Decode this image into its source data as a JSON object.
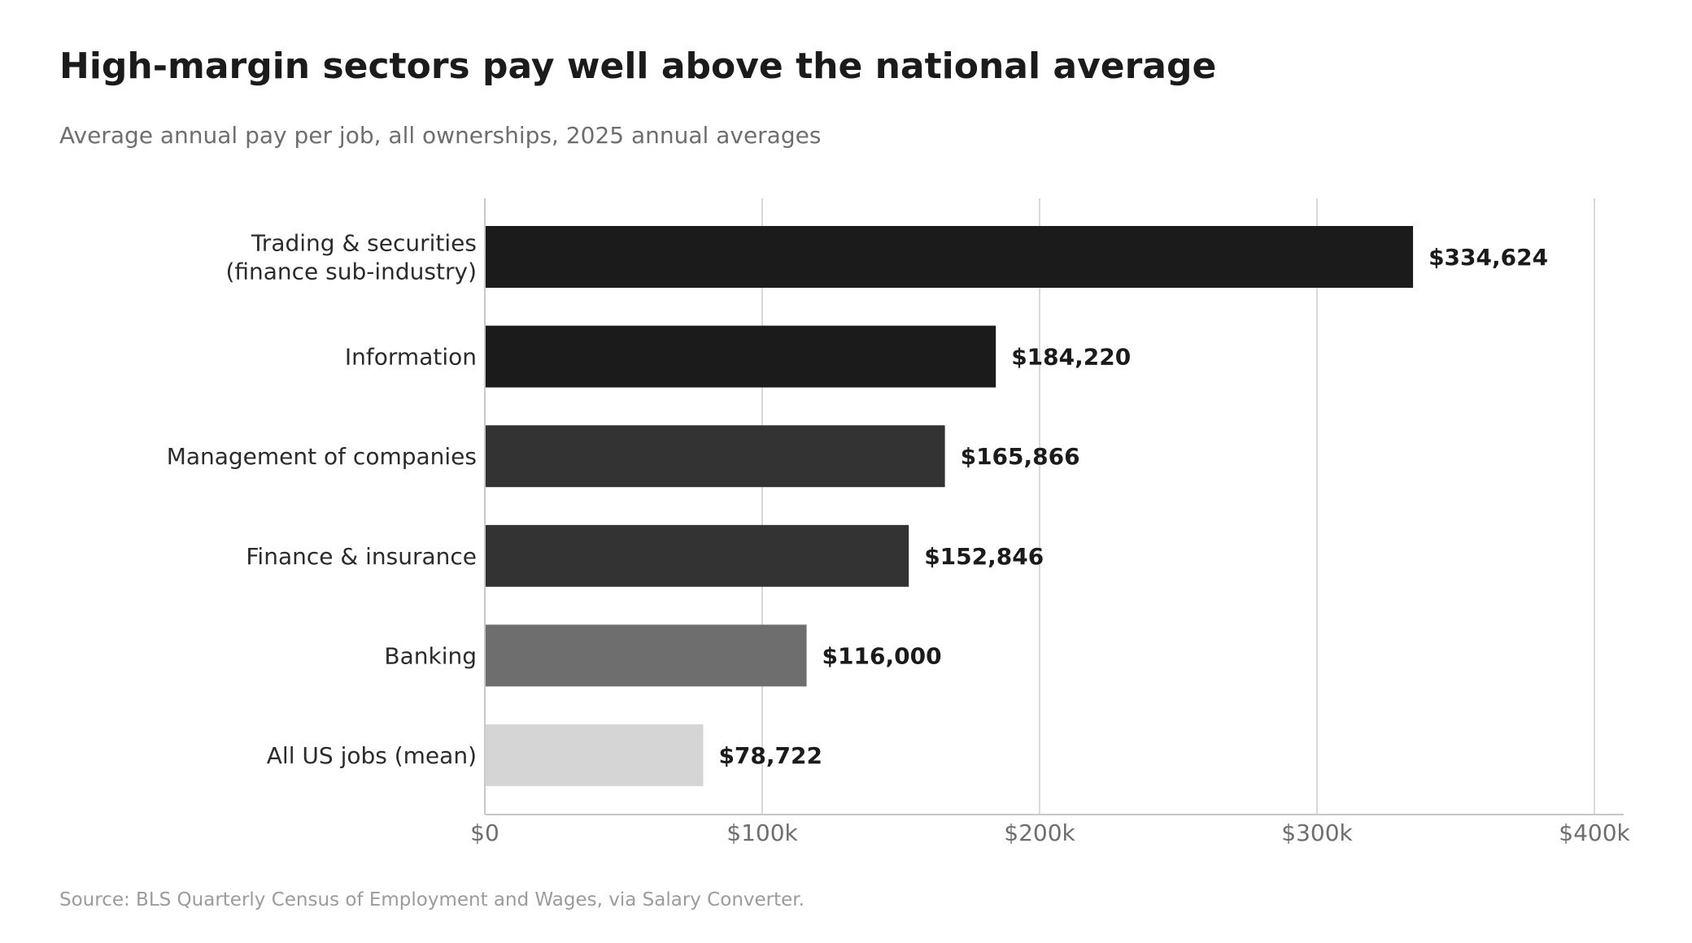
{
  "title": "High-margin sectors pay well above the national average",
  "subtitle": "Average annual pay per job, all ownerships, 2025 annual averages",
  "source": "Source: BLS Quarterly Census of Employment and Wages, via Salary Converter.",
  "colors": {
    "text_dark": "#1b1b1b",
    "text_label": "#2b2b2b",
    "text_muted": "#6e6e6e",
    "grid": "#d9d9d9",
    "axis": "#c8c8c8"
  },
  "chart_data": {
    "type": "bar",
    "orientation": "horizontal",
    "categories": [
      [
        "Trading & securities",
        "(finance sub-industry)"
      ],
      [
        "Information"
      ],
      [
        "Management of companies"
      ],
      [
        "Finance & insurance"
      ],
      [
        "Banking"
      ],
      [
        "All US jobs (mean)"
      ]
    ],
    "values": [
      334624,
      184220,
      165866,
      152846,
      116000,
      78722
    ],
    "value_labels": [
      "$334,624",
      "$184,220",
      "$165,866",
      "$152,846",
      "$116,000",
      "$78,722"
    ],
    "bar_colors": [
      "#1b1b1b",
      "#1b1b1b",
      "#333333",
      "#333333",
      "#6e6e6e",
      "#d5d5d5"
    ],
    "xlim": [
      0,
      400000
    ],
    "xticks": [
      0,
      100000,
      200000,
      300000,
      400000
    ],
    "xtick_labels": [
      "$0",
      "$100k",
      "$200k",
      "$300k",
      "$400k"
    ],
    "grid": "vertical",
    "title": "High-margin sectors pay well above the national average",
    "xlabel": "",
    "ylabel": ""
  }
}
